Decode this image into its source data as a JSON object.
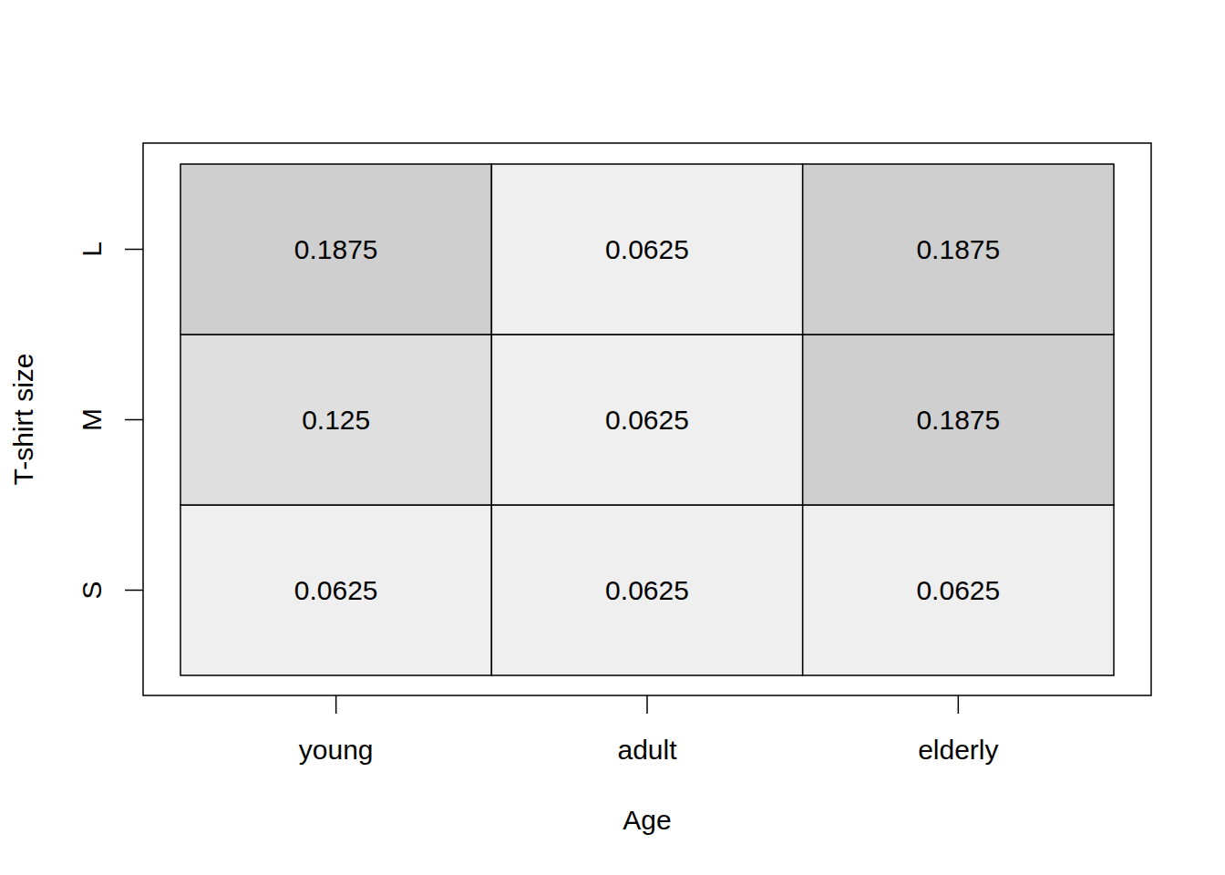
{
  "chart_data": {
    "type": "heatmap",
    "x_label": "Age",
    "y_label": "T-shirt size",
    "x_categories": [
      "young",
      "adult",
      "elderly"
    ],
    "y_categories": [
      "S",
      "M",
      "L"
    ],
    "cells": [
      [
        0.0625,
        0.0625,
        0.0625
      ],
      [
        0.125,
        0.0625,
        0.1875
      ],
      [
        0.1875,
        0.0625,
        0.1875
      ]
    ],
    "data_labels": true
  }
}
